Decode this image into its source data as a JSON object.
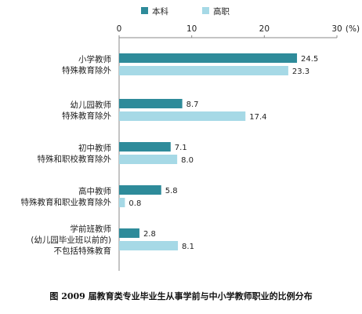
{
  "chart_data": {
    "type": "bar",
    "orientation": "horizontal",
    "title": "图   2009 届教育类专业毕业生从事学前与中小学教师职业的比例分布",
    "unit_label": "(%)",
    "xlim": [
      0,
      30
    ],
    "ticks": [
      0,
      10,
      20,
      30
    ],
    "legend_position": "top",
    "categories": [
      [
        "小学教师",
        "特殊教育除外"
      ],
      [
        "幼儿园教师",
        "特殊教育除外"
      ],
      [
        "初中教师",
        "特殊和职校教育除外"
      ],
      [
        "高中教师",
        "特殊教育和职业教育除外"
      ],
      [
        "学前班教师",
        "(幼儿园毕业班以前的)",
        "不包括特殊教育"
      ]
    ],
    "series": [
      {
        "name": "本科",
        "color": "#2e8b9a",
        "values": [
          24.5,
          8.7,
          7.1,
          5.8,
          2.8
        ]
      },
      {
        "name": "高职",
        "color": "#a6d9e6",
        "values": [
          23.3,
          17.4,
          8.0,
          0.8,
          8.1
        ]
      }
    ]
  }
}
